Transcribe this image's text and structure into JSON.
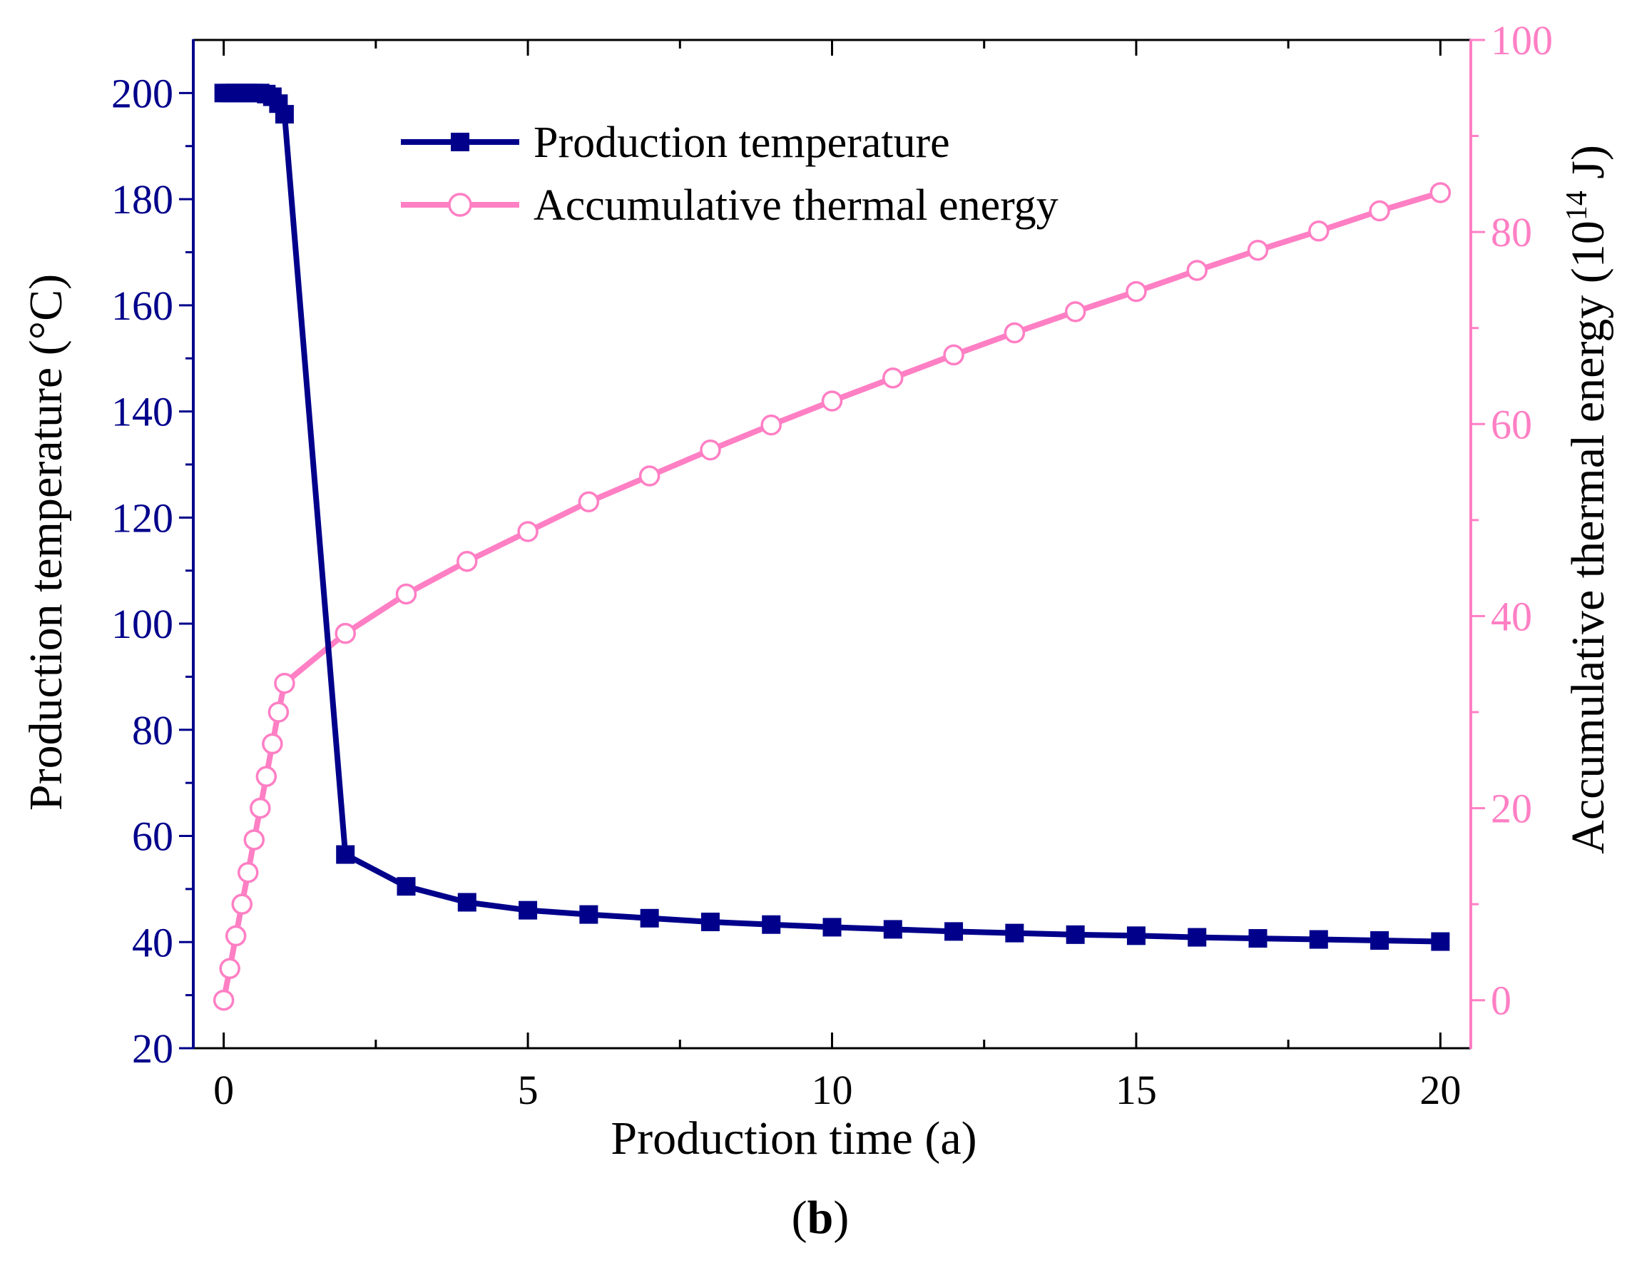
{
  "chart_data": {
    "type": "line",
    "panel_label_open": "(",
    "panel_label": "b",
    "panel_label_close": ")",
    "xlabel": "Production time (a)",
    "ylabel_left": "Production temperature (°C)",
    "ylabel_right_prefix": "Accumulative thermal energy (10",
    "ylabel_right_exponent": "14",
    "ylabel_right_suffix": " J)",
    "xlim": [
      -0.5,
      20.5
    ],
    "ylim_left": [
      20,
      210
    ],
    "ylim_right": [
      -5,
      100
    ],
    "x_ticks": [
      0,
      5,
      10,
      15,
      20
    ],
    "x_tick_labels": [
      "0",
      "5",
      "10",
      "15",
      "20"
    ],
    "y_left_ticks": [
      20,
      40,
      60,
      80,
      100,
      120,
      140,
      160,
      180,
      200
    ],
    "y_left_tick_labels": [
      "20",
      "40",
      "60",
      "80",
      "100",
      "120",
      "140",
      "160",
      "180",
      "200"
    ],
    "y_right_ticks": [
      0,
      20,
      40,
      60,
      80,
      100
    ],
    "y_right_tick_labels": [
      "0",
      "20",
      "40",
      "60",
      "80",
      "100"
    ],
    "legend_position": "top-center",
    "colors": {
      "temperature": "#00008B",
      "energy": "#FF7FC4",
      "axis": "#000000"
    },
    "series": [
      {
        "name": "Production temperature",
        "axis": "left",
        "marker": "filled-square",
        "x": [
          0,
          0.1,
          0.2,
          0.3,
          0.4,
          0.5,
          0.6,
          0.7,
          0.8,
          0.9,
          1,
          2,
          3,
          4,
          5,
          6,
          7,
          8,
          9,
          10,
          11,
          12,
          13,
          14,
          15,
          16,
          17,
          18,
          19,
          20
        ],
        "values": [
          200,
          200,
          200,
          200,
          200,
          200,
          200,
          199.8,
          199.3,
          198,
          196,
          56.5,
          50.5,
          47.5,
          46,
          45.2,
          44.5,
          43.8,
          43.3,
          42.8,
          42.4,
          42,
          41.7,
          41.4,
          41.2,
          40.9,
          40.7,
          40.5,
          40.3,
          40.1
        ]
      },
      {
        "name": "Accumulative thermal energy",
        "axis": "right",
        "marker": "open-circle",
        "x": [
          0,
          0.1,
          0.2,
          0.3,
          0.4,
          0.5,
          0.6,
          0.7,
          0.8,
          0.9,
          1,
          2,
          3,
          4,
          5,
          6,
          7,
          8,
          9,
          10,
          11,
          12,
          13,
          14,
          15,
          16,
          17,
          18,
          19,
          20
        ],
        "values": [
          0,
          3.3,
          6.7,
          10,
          13.3,
          16.7,
          20,
          23.3,
          26.7,
          30,
          33,
          38.2,
          42.3,
          45.7,
          48.8,
          51.9,
          54.6,
          57.3,
          59.9,
          62.4,
          64.8,
          67.2,
          69.5,
          71.7,
          73.8,
          76,
          78.1,
          80.1,
          82.2,
          84.1
        ]
      }
    ]
  }
}
